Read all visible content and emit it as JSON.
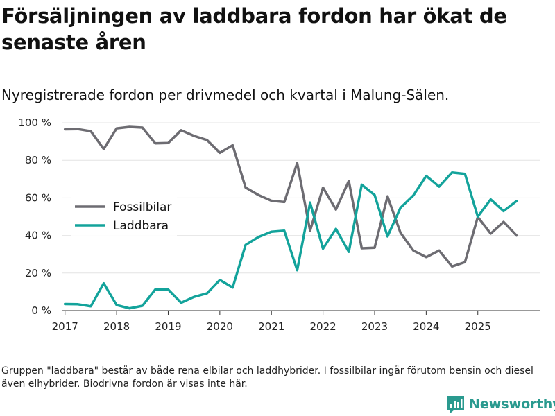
{
  "header": {
    "title": "Försäljningen av laddbara fordon har ökat de senaste åren",
    "subtitle": "Nyregistrerade fordon per drivmedel och kvartal i Malung-Sälen."
  },
  "footer": {
    "note": "Gruppen \"laddbara\" består av både rena elbilar och laddhybrider. I fossilbilar ingår förutom bensin och diesel även elhybrider. Biodrivna fordon är visas inte här.",
    "brand": "Newsworthy"
  },
  "colors": {
    "fossil": "#6d6c72",
    "laddbara": "#13a39b",
    "grid": "#e4e4e4",
    "axis": "#333333",
    "brand": "#2a9a8f"
  },
  "chart_data": {
    "type": "line",
    "title": "Försäljningen av laddbara fordon har ökat de senaste åren",
    "subtitle": "Nyregistrerade fordon per drivmedel och kvartal i Malung-Sälen.",
    "xlabel": "",
    "ylabel": "",
    "xlim": [
      2016.95,
      2026.2
    ],
    "ylim": [
      0,
      100
    ],
    "y_ticks": [
      0,
      20,
      40,
      60,
      80,
      100
    ],
    "y_tick_labels": [
      "0 %",
      "20 %",
      "40 %",
      "60 %",
      "80 %",
      "100 %"
    ],
    "x_ticks": [
      2017,
      2018,
      2019,
      2020,
      2021,
      2022,
      2023,
      2024,
      2025
    ],
    "x_tick_labels": [
      "2017",
      "2018",
      "2019",
      "2020",
      "2021",
      "2022",
      "2023",
      "2024",
      "2025"
    ],
    "grid": true,
    "legend_position": "middle-left",
    "x": [
      2017.0,
      2017.25,
      2017.5,
      2017.75,
      2018.0,
      2018.25,
      2018.5,
      2018.75,
      2019.0,
      2019.25,
      2019.5,
      2019.75,
      2020.0,
      2020.25,
      2020.5,
      2020.75,
      2021.0,
      2021.25,
      2021.5,
      2021.75,
      2022.0,
      2022.25,
      2022.5,
      2022.75,
      2023.0,
      2023.25,
      2023.5,
      2023.75,
      2024.0,
      2024.25,
      2024.5,
      2024.75,
      2025.0,
      2025.25,
      2025.5,
      2025.75
    ],
    "series": [
      {
        "name": "Fossilbilar",
        "color": "#6d6c72",
        "values": [
          96.5,
          96.6,
          95.5,
          86,
          97,
          97.8,
          97.4,
          89,
          89.2,
          96,
          93,
          90.8,
          84,
          88,
          65.5,
          61.5,
          58.5,
          57.8,
          78.5,
          42.5,
          65.5,
          53.8,
          69,
          33.2,
          33.5,
          60.8,
          41.5,
          32,
          28.5,
          32,
          23.5,
          25.8,
          49.8,
          41,
          47.2,
          40
        ]
      },
      {
        "name": "Laddbara",
        "color": "#13a39b",
        "values": [
          3.5,
          3.4,
          2.3,
          14.5,
          3,
          1.2,
          2.6,
          11.3,
          11.2,
          4.2,
          7.3,
          9.2,
          16.3,
          12.3,
          35,
          39.2,
          42,
          42.5,
          21.5,
          57.5,
          33,
          43.5,
          31.3,
          67,
          61.5,
          39.5,
          54.7,
          61.3,
          71.7,
          66,
          73.5,
          72.8,
          50,
          59.2,
          53,
          58.3
        ]
      }
    ]
  }
}
